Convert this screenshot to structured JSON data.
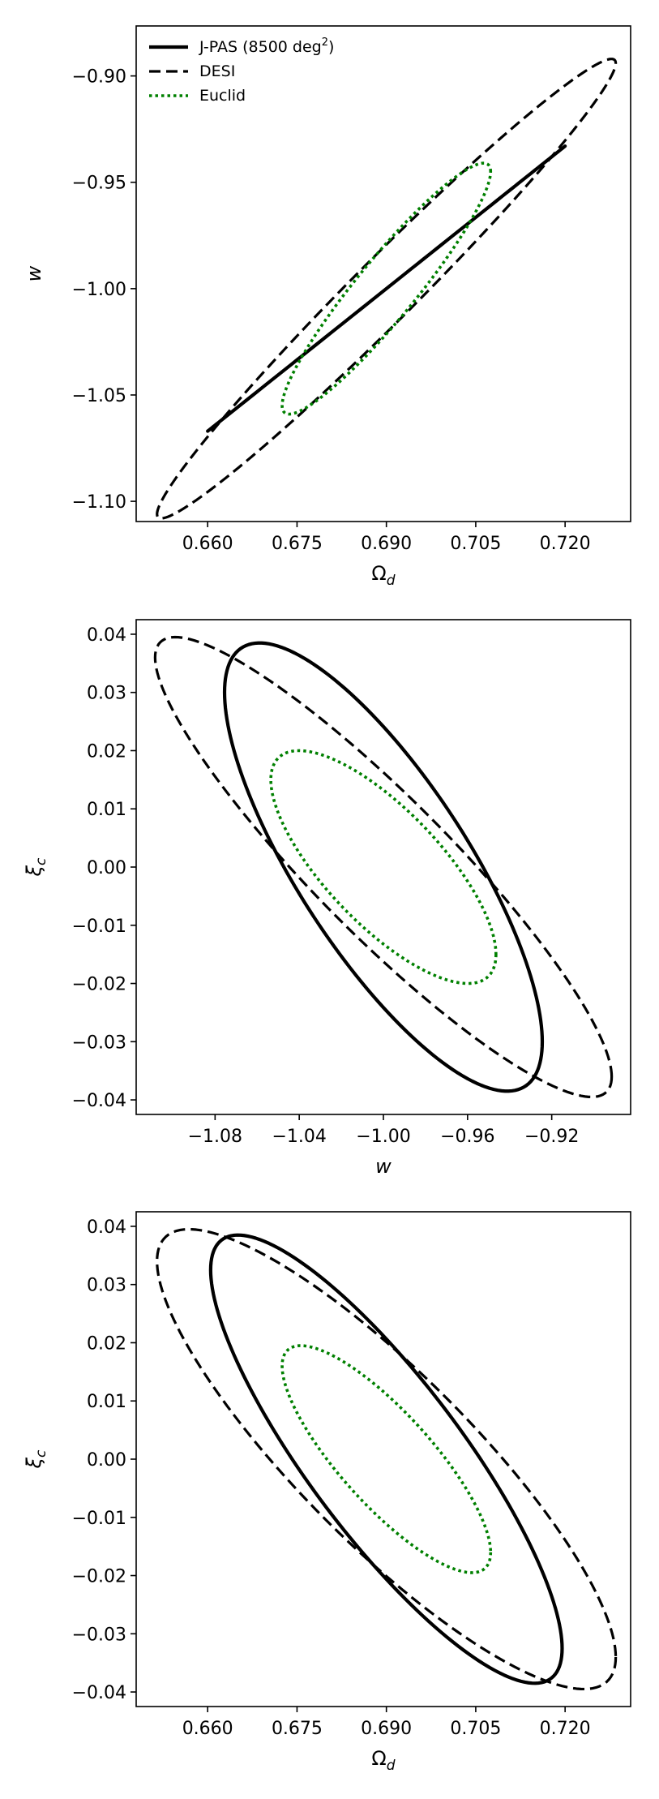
{
  "chart_data": [
    {
      "type": "contour-ellipse",
      "xlabel": "Ω",
      "xlabel_sub": "d",
      "ylabel": "w",
      "ylabel_sub": "",
      "xlim": [
        0.648,
        0.731
      ],
      "ylim": [
        -1.1095,
        -0.8765
      ],
      "xticks": [
        0.66,
        0.675,
        0.69,
        0.705,
        0.72
      ],
      "xtick_labels": [
        "0.660",
        "0.675",
        "0.690",
        "0.705",
        "0.720"
      ],
      "yticks": [
        -0.9,
        -0.95,
        -1.0,
        -1.05,
        -1.1
      ],
      "ytick_labels": [
        "−0.90",
        "−0.95",
        "−1.00",
        "−1.05",
        "−1.10"
      ],
      "legend": {
        "placement": "upper-left",
        "entries": [
          {
            "name": "J-PAS (8500 deg",
            "sup": "2",
            "suffix": ")",
            "style": "solid",
            "color": "#000000"
          },
          {
            "name": "DESI",
            "style": "dashed",
            "color": "#000000"
          },
          {
            "name": "Euclid",
            "style": "dotted",
            "color": "#008000"
          }
        ]
      },
      "series": [
        {
          "name": "J-PAS (8500 deg2)",
          "style": "solid",
          "color": "#000000",
          "center": [
            0.69,
            -1.0
          ],
          "extreme_points": [
            [
              0.72,
              -0.923
            ],
            [
              0.6595,
              -1.076
            ],
            [
              0.72,
              -0.933
            ],
            [
              0.6595,
              -1.066
            ]
          ]
        },
        {
          "name": "DESI",
          "style": "dashed",
          "color": "#000000",
          "center": [
            0.69,
            -1.0
          ],
          "extreme_points": [
            [
              0.7285,
              -0.894
            ],
            [
              0.6515,
              -1.108
            ],
            [
              0.727,
              -0.892
            ],
            [
              0.653,
              -1.107
            ]
          ]
        },
        {
          "name": "Euclid",
          "style": "dotted",
          "color": "#008000",
          "center": [
            0.69,
            -1.0
          ],
          "extreme_points": [
            [
              0.7075,
              -0.945
            ],
            [
              0.6725,
              -1.057
            ],
            [
              0.707,
              -0.941
            ],
            [
              0.673,
              -1.061
            ]
          ]
        }
      ]
    },
    {
      "type": "contour-ellipse",
      "xlabel": "w",
      "xlabel_sub": "",
      "ylabel": "ξ",
      "ylabel_sub": "c",
      "xlim": [
        -1.1175,
        -0.8825
      ],
      "ylim": [
        -0.0425,
        0.0425
      ],
      "xticks": [
        -1.08,
        -1.04,
        -1.0,
        -0.96,
        -0.92
      ],
      "xtick_labels": [
        "−1.08",
        "−1.04",
        "−1.00",
        "−0.96",
        "−0.92"
      ],
      "yticks": [
        0.04,
        0.03,
        0.02,
        0.01,
        0.0,
        -0.01,
        -0.02,
        -0.03,
        -0.04
      ],
      "ytick_labels": [
        "0.04",
        "0.03",
        "0.02",
        "0.01",
        "0.00",
        "−0.01",
        "−0.02",
        "−0.03",
        "−0.04"
      ],
      "series": [
        {
          "name": "J-PAS (8500 deg2)",
          "style": "solid",
          "color": "#000000",
          "center": [
            -1.0,
            0.0
          ],
          "extreme_points": [
            [
              -0.9245,
              -0.03
            ],
            [
              -1.0755,
              0.03
            ],
            [
              -0.934,
              -0.0385
            ],
            [
              -1.066,
              0.0385
            ]
          ]
        },
        {
          "name": "DESI",
          "style": "dashed",
          "color": "#000000",
          "center": [
            -1.0,
            0.0
          ],
          "extreme_points": [
            [
              -0.8915,
              -0.036
            ],
            [
              -1.1085,
              0.036
            ],
            [
              -0.906,
              -0.0395
            ],
            [
              -1.094,
              0.0395
            ]
          ]
        },
        {
          "name": "Euclid",
          "style": "dotted",
          "color": "#008000",
          "center": [
            -1.0,
            0.0
          ],
          "extreme_points": [
            [
              -0.9465,
              -0.015
            ],
            [
              -1.0535,
              0.015
            ],
            [
              -0.955,
              -0.02
            ],
            [
              -1.045,
              0.02
            ]
          ]
        }
      ]
    },
    {
      "type": "contour-ellipse",
      "xlabel": "Ω",
      "xlabel_sub": "d",
      "ylabel": "ξ",
      "ylabel_sub": "c",
      "xlim": [
        0.648,
        0.731
      ],
      "ylim": [
        -0.0425,
        0.0425
      ],
      "xticks": [
        0.66,
        0.675,
        0.69,
        0.705,
        0.72
      ],
      "xtick_labels": [
        "0.660",
        "0.675",
        "0.690",
        "0.705",
        "0.720"
      ],
      "yticks": [
        0.04,
        0.03,
        0.02,
        0.01,
        0.0,
        -0.01,
        -0.02,
        -0.03,
        -0.04
      ],
      "ytick_labels": [
        "0.04",
        "0.03",
        "0.02",
        "0.01",
        "0.00",
        "−0.01",
        "−0.02",
        "−0.03",
        "−0.04"
      ],
      "series": [
        {
          "name": "J-PAS (8500 deg2)",
          "style": "solid",
          "color": "#000000",
          "center": [
            0.69,
            0.0
          ],
          "extreme_points": [
            [
              0.7195,
              -0.0325
            ],
            [
              0.6605,
              0.0325
            ],
            [
              0.718,
              -0.0385
            ],
            [
              0.662,
              0.0385
            ]
          ]
        },
        {
          "name": "DESI",
          "style": "dashed",
          "color": "#000000",
          "center": [
            0.69,
            0.0
          ],
          "extreme_points": [
            [
              0.7285,
              -0.034
            ],
            [
              0.6515,
              0.034
            ],
            [
              0.725,
              -0.0395
            ],
            [
              0.655,
              0.0395
            ]
          ]
        },
        {
          "name": "Euclid",
          "style": "dotted",
          "color": "#008000",
          "center": [
            0.69,
            0.0
          ],
          "extreme_points": [
            [
              0.7075,
              -0.016
            ],
            [
              0.6725,
              0.016
            ],
            [
              0.7055,
              -0.0195
            ],
            [
              0.6745,
              0.0195
            ]
          ]
        }
      ]
    }
  ]
}
